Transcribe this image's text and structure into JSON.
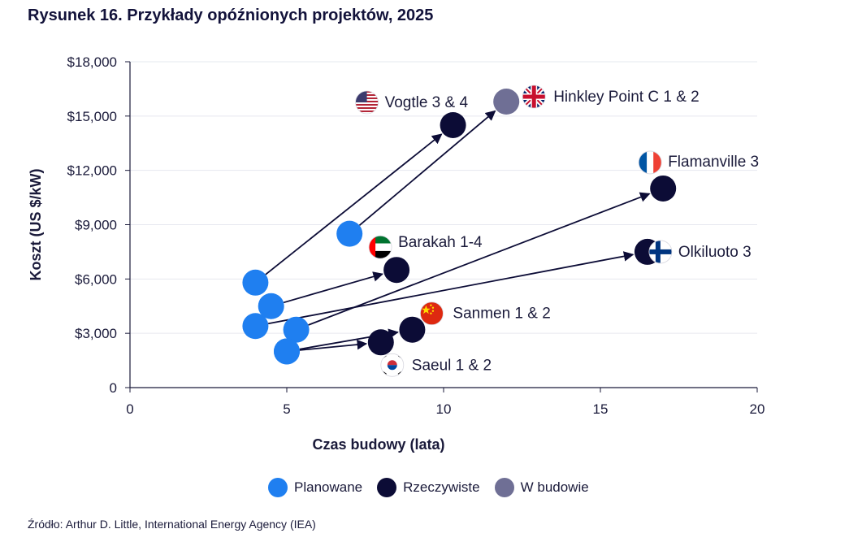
{
  "title": "Rysunek 16. Przykłady opóźnionych projektów, 2025",
  "source": "Źródło: Arthur D. Little, International Energy Agency (IEA)",
  "colors": {
    "planned": "#1f7ff0",
    "actual": "#0c0c36",
    "in_construction": "#6f6f95",
    "grid": "#e6e8ef",
    "text": "#1a1a3a"
  },
  "legend": [
    {
      "label": "Planowane",
      "color": "#1f7ff0"
    },
    {
      "label": "Rzeczywiste",
      "color": "#0c0c36"
    },
    {
      "label": "W budowie",
      "color": "#6f6f95"
    }
  ],
  "chart_data": {
    "type": "scatter",
    "xlabel": "Czas budowy (lata)",
    "ylabel": "Koszt (US $/kW)",
    "xlim": [
      0,
      20
    ],
    "ylim": [
      0,
      18000
    ],
    "x_ticks": [
      0,
      5,
      10,
      15,
      20
    ],
    "x_tick_labels": [
      "0",
      "5",
      "10",
      "15",
      "20"
    ],
    "y_ticks": [
      0,
      3000,
      6000,
      9000,
      12000,
      15000,
      18000
    ],
    "y_tick_labels": [
      "0",
      "$3,000",
      "$6,000",
      "$9,000",
      "$12,000",
      "$15,000",
      "$18,000"
    ],
    "grid": "horizontal",
    "legend_position": "bottom",
    "projects": [
      {
        "name": "Vogtle 3 & 4",
        "flag": "us-flag-icon",
        "status": "actual",
        "planned": [
          4.0,
          5800
        ],
        "actual": [
          10.3,
          14500
        ]
      },
      {
        "name": "Hinkley Point C 1 & 2",
        "flag": "uk-flag-icon",
        "status": "in_construction",
        "planned": [
          7.0,
          8500
        ],
        "actual": [
          12.0,
          15800
        ]
      },
      {
        "name": "Flamanville 3",
        "flag": "france-flag-icon",
        "status": "actual",
        "planned": [
          5.3,
          3200
        ],
        "actual": [
          17.0,
          11000
        ]
      },
      {
        "name": "Olkiluoto 3",
        "flag": "finland-flag-icon",
        "status": "actual",
        "planned": [
          4.0,
          3400
        ],
        "actual": [
          16.5,
          7500
        ]
      },
      {
        "name": "Barakah 1-4",
        "flag": "uae-flag-icon",
        "status": "actual",
        "planned": [
          4.5,
          4500
        ],
        "actual": [
          8.5,
          6500
        ]
      },
      {
        "name": "Sanmen 1 & 2",
        "flag": "china-flag-icon",
        "status": "actual",
        "planned": [
          5.0,
          2000
        ],
        "actual": [
          9.0,
          3200
        ]
      },
      {
        "name": "Saeul 1 & 2",
        "flag": "korea-flag-icon",
        "status": "actual",
        "planned": [
          5.0,
          2000
        ],
        "actual": [
          8.0,
          2500
        ]
      }
    ]
  }
}
